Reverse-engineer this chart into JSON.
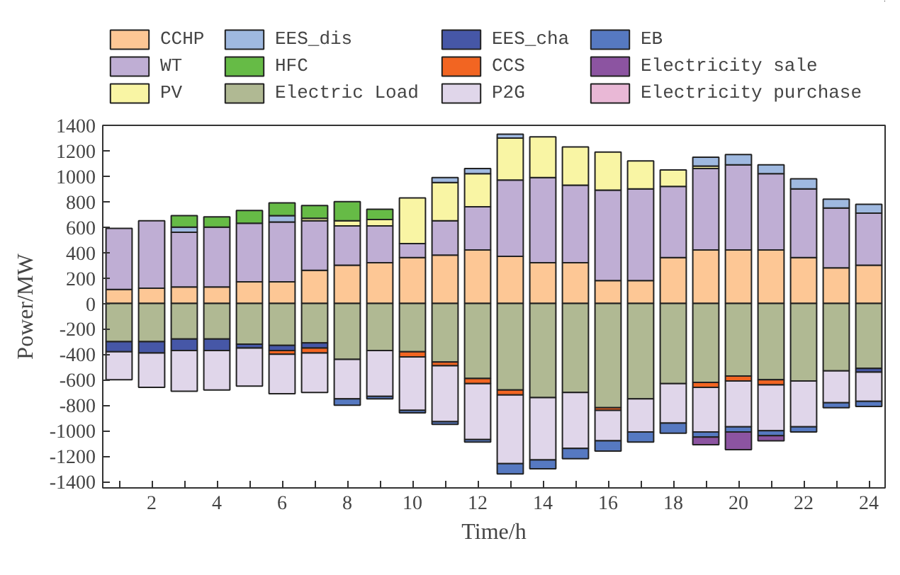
{
  "chart_data": {
    "type": "bar",
    "stacked": true,
    "xlabel": "Time/h",
    "ylabel": "Power/MW",
    "x": [
      1,
      2,
      3,
      4,
      5,
      6,
      7,
      8,
      9,
      10,
      11,
      12,
      13,
      14,
      15,
      16,
      17,
      18,
      19,
      20,
      21,
      22,
      23,
      24
    ],
    "xlim": [
      0.5,
      24.5
    ],
    "xticks": [
      {
        "value": 1,
        "label": null
      },
      2,
      {
        "value": 3,
        "label": null
      },
      4,
      {
        "value": 5,
        "label": null
      },
      6,
      {
        "value": 7,
        "label": null
      },
      8,
      {
        "value": 9,
        "label": null
      },
      10,
      {
        "value": 11,
        "label": null
      },
      12,
      {
        "value": 13,
        "label": null
      },
      14,
      {
        "value": 15,
        "label": null
      },
      16,
      {
        "value": 17,
        "label": null
      },
      18,
      {
        "value": 19,
        "label": null
      },
      20,
      {
        "value": 21,
        "label": null
      },
      22,
      {
        "value": 23,
        "label": null
      },
      24
    ],
    "ylim": [
      -1450,
      1400
    ],
    "yticks": [
      -1400,
      -1200,
      -1000,
      -800,
      -600,
      -400,
      -200,
      0,
      200,
      400,
      600,
      800,
      1000,
      1200,
      1400
    ],
    "grid": false,
    "legend": "top",
    "series": [
      {
        "name": "CCHP",
        "color": "#fdc795",
        "values": [
          110,
          120,
          130,
          130,
          170,
          170,
          260,
          300,
          320,
          360,
          380,
          420,
          370,
          320,
          320,
          180,
          180,
          360,
          420,
          420,
          420,
          360,
          280,
          300
        ]
      },
      {
        "name": "WT",
        "color": "#bfaed4",
        "values": [
          480,
          530,
          430,
          470,
          460,
          470,
          390,
          310,
          290,
          110,
          270,
          340,
          600,
          670,
          610,
          710,
          720,
          560,
          640,
          670,
          600,
          540,
          470,
          410
        ]
      },
      {
        "name": "PV",
        "color": "#f9f5a4",
        "values": [
          null,
          null,
          null,
          null,
          null,
          null,
          20,
          40,
          50,
          360,
          300,
          260,
          330,
          320,
          300,
          300,
          220,
          130,
          20,
          null,
          null,
          null,
          null,
          null
        ]
      },
      {
        "name": "EES_dis",
        "color": "#9fb9e0",
        "values": [
          null,
          null,
          40,
          null,
          null,
          50,
          null,
          null,
          null,
          null,
          40,
          40,
          30,
          null,
          null,
          null,
          null,
          null,
          70,
          80,
          70,
          80,
          70,
          70
        ]
      },
      {
        "name": "HFC",
        "color": "#66bb46",
        "values": [
          null,
          null,
          90,
          80,
          100,
          100,
          100,
          150,
          80,
          null,
          null,
          null,
          null,
          null,
          null,
          null,
          null,
          null,
          null,
          null,
          null,
          null,
          null,
          null
        ]
      },
      {
        "name": "Electric Load",
        "color": "#b0b993",
        "values": [
          -300,
          -300,
          -280,
          -280,
          -320,
          -330,
          -310,
          -440,
          -370,
          -380,
          -460,
          -590,
          -680,
          -740,
          -700,
          -820,
          -750,
          -630,
          -620,
          -570,
          -600,
          -610,
          -530,
          -510
        ]
      },
      {
        "name": "EES_cha",
        "color": "#4657a7",
        "values": [
          -80,
          -90,
          -90,
          -90,
          -30,
          -40,
          -40,
          null,
          null,
          null,
          null,
          null,
          null,
          null,
          null,
          null,
          null,
          null,
          null,
          null,
          null,
          null,
          null,
          -30
        ]
      },
      {
        "name": "CCS",
        "color": "#f26522",
        "values": [
          null,
          null,
          null,
          null,
          null,
          -30,
          -40,
          null,
          null,
          -40,
          -30,
          -40,
          -40,
          null,
          null,
          -20,
          null,
          null,
          -40,
          -40,
          -40,
          null,
          null,
          null
        ]
      },
      {
        "name": "P2G",
        "color": "#e0d6ea",
        "values": [
          -220,
          -270,
          -320,
          -310,
          -300,
          -310,
          -310,
          -310,
          -360,
          -420,
          -440,
          -440,
          -540,
          -490,
          -440,
          -240,
          -260,
          -310,
          -350,
          -360,
          -360,
          -360,
          -250,
          -230
        ]
      },
      {
        "name": "EB",
        "color": "#5679c1",
        "values": [
          null,
          null,
          null,
          null,
          null,
          null,
          null,
          -50,
          -20,
          -20,
          -20,
          -20,
          -80,
          -70,
          -80,
          -80,
          -80,
          -80,
          -40,
          -40,
          -40,
          -40,
          -40,
          -40
        ]
      },
      {
        "name": "Electricity sale",
        "color": "#8c54a1",
        "values": [
          null,
          null,
          null,
          null,
          null,
          null,
          null,
          null,
          null,
          null,
          null,
          null,
          null,
          null,
          null,
          null,
          null,
          null,
          -60,
          -140,
          -40,
          null,
          null,
          null
        ]
      },
      {
        "name": "Electricity purchase",
        "color": "#e9b8d6",
        "values": [
          null,
          null,
          null,
          null,
          null,
          null,
          null,
          null,
          null,
          null,
          null,
          null,
          null,
          null,
          null,
          null,
          null,
          null,
          null,
          null,
          null,
          null,
          null,
          null
        ]
      }
    ]
  }
}
